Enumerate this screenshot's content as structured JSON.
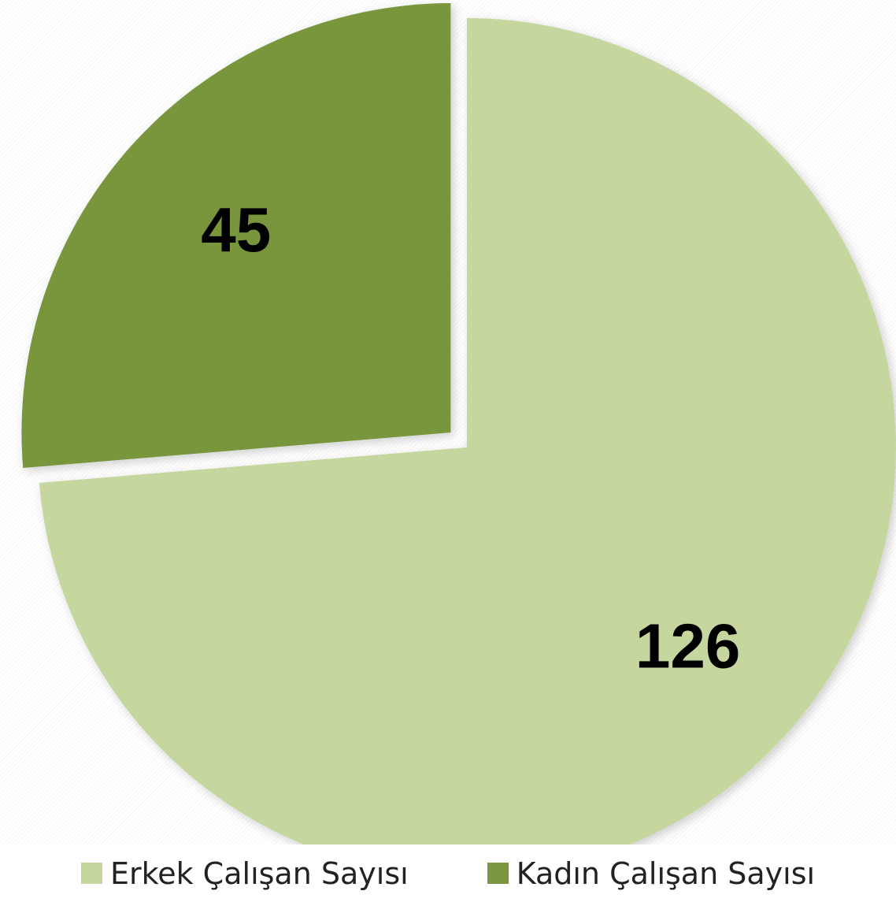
{
  "chart_data": {
    "type": "pie",
    "title": "",
    "slices": [
      {
        "name": "Erkek Çalışan Sayısı",
        "value": 126,
        "label": "126",
        "color": "#c5d79e",
        "exploded": false
      },
      {
        "name": "Kadın Çalışan Sayısı",
        "value": 45,
        "label": "45",
        "color": "#7a963e",
        "exploded": true
      }
    ],
    "legend_position": "bottom",
    "start_angle": "12 o'clock, clockwise"
  }
}
